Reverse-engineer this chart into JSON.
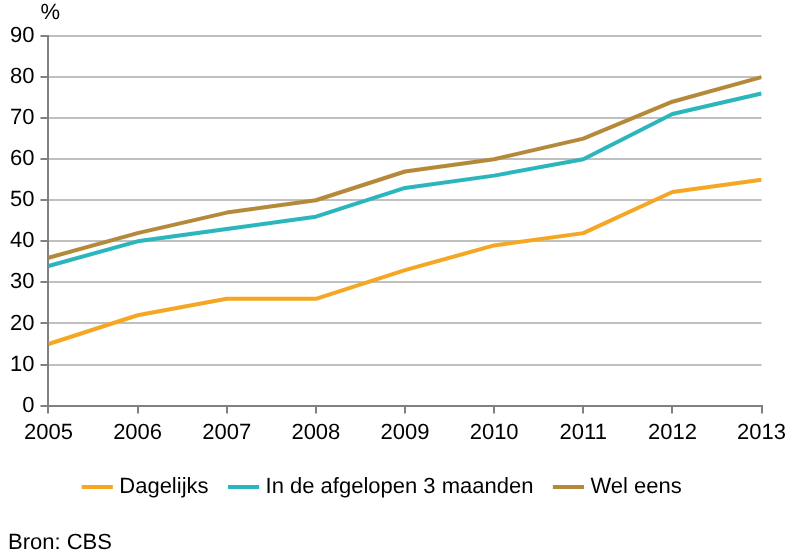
{
  "chart_data": {
    "type": "line",
    "ylabel": "%",
    "x": [
      2005,
      2006,
      2007,
      2008,
      2009,
      2010,
      2011,
      2012,
      2013
    ],
    "series": [
      {
        "name": "Dagelijks",
        "color": "#f5a623",
        "values": [
          15,
          22,
          26,
          26,
          33,
          39,
          42,
          52,
          55
        ]
      },
      {
        "name": "In de afgelopen 3 maanden",
        "color": "#2bb5bd",
        "values": [
          34,
          40,
          43,
          46,
          53,
          56,
          60,
          71,
          76
        ]
      },
      {
        "name": "Wel eens",
        "color": "#b5893a",
        "values": [
          36,
          42,
          47,
          50,
          57,
          60,
          65,
          74,
          80
        ]
      }
    ],
    "xlim": [
      2005,
      2013
    ],
    "xticks": [
      2005,
      2006,
      2007,
      2008,
      2009,
      2010,
      2011,
      2012,
      2013
    ],
    "ylim": [
      0,
      90
    ],
    "yticks": [
      0,
      10,
      20,
      30,
      40,
      50,
      60,
      70,
      80,
      90
    ],
    "grid": "y",
    "legend": "bottom",
    "marker": "none",
    "line_style": "solid",
    "annotations": [
      "Bron: CBS"
    ]
  }
}
